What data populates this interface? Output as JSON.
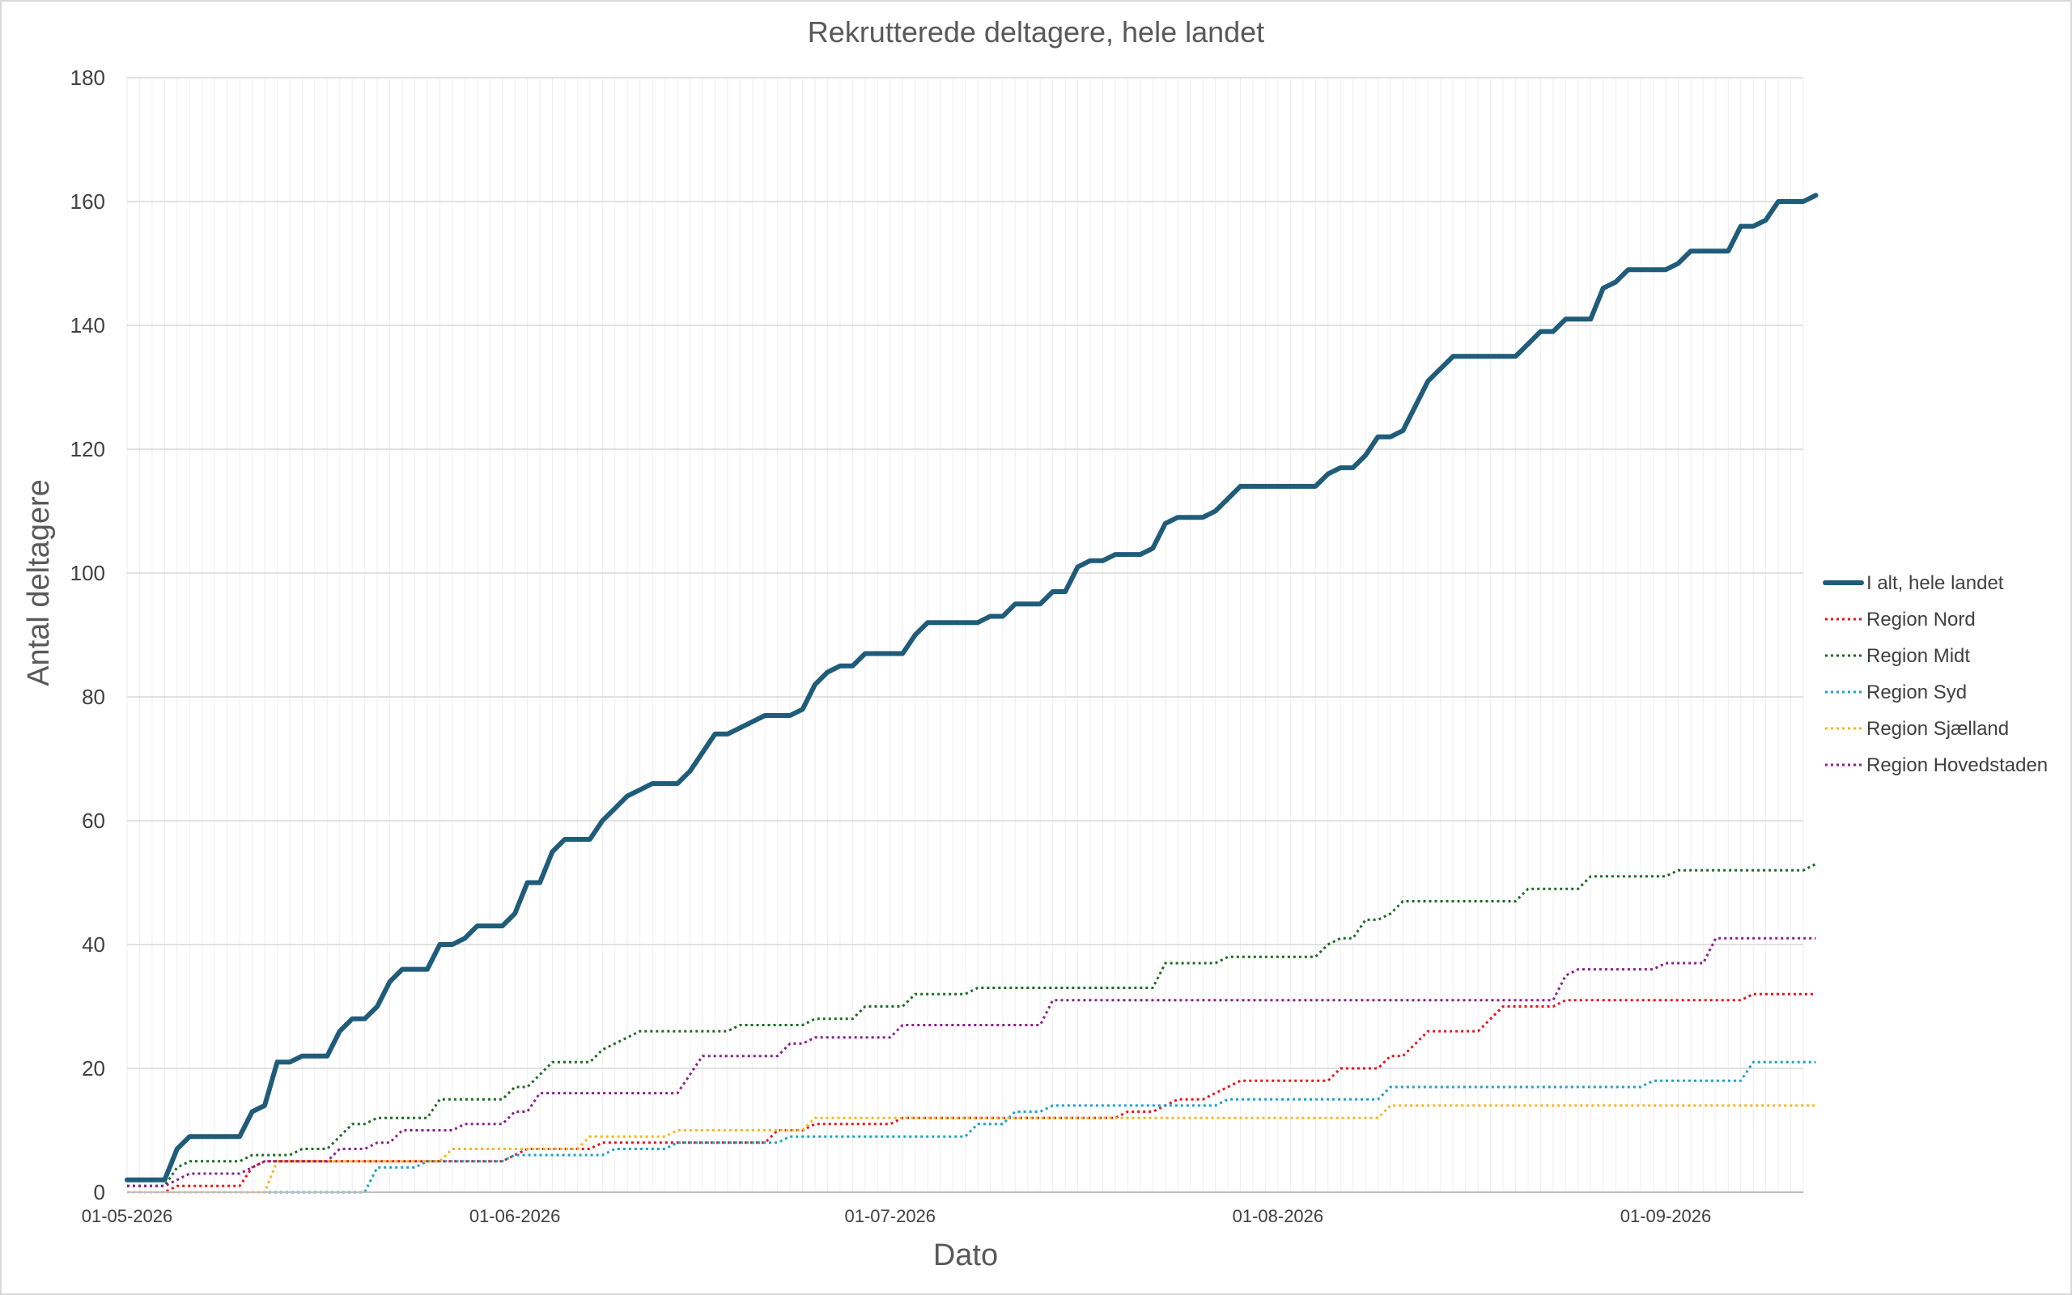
{
  "chart_data": {
    "type": "line",
    "title": "Rekrutterede deltagere, hele landet",
    "xlabel": "Dato",
    "ylabel": "Antal deltagere",
    "x_range": [
      "2026-05-01",
      "2026-09-12"
    ],
    "ylim": [
      0,
      180
    ],
    "y_ticks": [
      0,
      20,
      40,
      60,
      80,
      100,
      120,
      140,
      160,
      180
    ],
    "x_ticks": [
      {
        "date": "2026-05-01",
        "label": "01-05-2026"
      },
      {
        "date": "2026-06-01",
        "label": "01-06-2026"
      },
      {
        "date": "2026-07-01",
        "label": "01-07-2026"
      },
      {
        "date": "2026-08-01",
        "label": "01-08-2026"
      },
      {
        "date": "2026-09-01",
        "label": "01-09-2026"
      }
    ],
    "grid": true,
    "legend_position": "right",
    "series": [
      {
        "name": "I alt, hele landet",
        "color": "#1f5c7a",
        "style": "solid",
        "points": [
          [
            "2026-05-01",
            2
          ],
          [
            "2026-05-04",
            2
          ],
          [
            "2026-05-05",
            7
          ],
          [
            "2026-05-06",
            9
          ],
          [
            "2026-05-10",
            9
          ],
          [
            "2026-05-11",
            13
          ],
          [
            "2026-05-12",
            14
          ],
          [
            "2026-05-13",
            21
          ],
          [
            "2026-05-14",
            21
          ],
          [
            "2026-05-15",
            22
          ],
          [
            "2026-05-17",
            22
          ],
          [
            "2026-05-18",
            26
          ],
          [
            "2026-05-19",
            28
          ],
          [
            "2026-05-20",
            28
          ],
          [
            "2026-05-21",
            30
          ],
          [
            "2026-05-22",
            34
          ],
          [
            "2026-05-23",
            36
          ],
          [
            "2026-05-25",
            36
          ],
          [
            "2026-05-26",
            40
          ],
          [
            "2026-05-27",
            40
          ],
          [
            "2026-05-28",
            41
          ],
          [
            "2026-05-29",
            43
          ],
          [
            "2026-05-31",
            43
          ],
          [
            "2026-06-01",
            45
          ],
          [
            "2026-06-02",
            50
          ],
          [
            "2026-06-03",
            50
          ],
          [
            "2026-06-04",
            55
          ],
          [
            "2026-06-05",
            57
          ],
          [
            "2026-06-07",
            57
          ],
          [
            "2026-06-08",
            60
          ],
          [
            "2026-06-09",
            62
          ],
          [
            "2026-06-10",
            64
          ],
          [
            "2026-06-11",
            65
          ],
          [
            "2026-06-12",
            66
          ],
          [
            "2026-06-14",
            66
          ],
          [
            "2026-06-15",
            68
          ],
          [
            "2026-06-16",
            71
          ],
          [
            "2026-06-17",
            74
          ],
          [
            "2026-06-18",
            74
          ],
          [
            "2026-06-19",
            75
          ],
          [
            "2026-06-21",
            77
          ],
          [
            "2026-06-23",
            77
          ],
          [
            "2026-06-24",
            78
          ],
          [
            "2026-06-25",
            82
          ],
          [
            "2026-06-26",
            84
          ],
          [
            "2026-06-27",
            85
          ],
          [
            "2026-06-28",
            85
          ],
          [
            "2026-06-29",
            87
          ],
          [
            "2026-07-02",
            87
          ],
          [
            "2026-07-03",
            90
          ],
          [
            "2026-07-04",
            92
          ],
          [
            "2026-07-08",
            92
          ],
          [
            "2026-07-09",
            93
          ],
          [
            "2026-07-10",
            93
          ],
          [
            "2026-07-11",
            95
          ],
          [
            "2026-07-13",
            95
          ],
          [
            "2026-07-14",
            97
          ],
          [
            "2026-07-15",
            97
          ],
          [
            "2026-07-16",
            101
          ],
          [
            "2026-07-17",
            102
          ],
          [
            "2026-07-18",
            102
          ],
          [
            "2026-07-19",
            103
          ],
          [
            "2026-07-21",
            103
          ],
          [
            "2026-07-22",
            104
          ],
          [
            "2026-07-23",
            108
          ],
          [
            "2026-07-24",
            109
          ],
          [
            "2026-07-26",
            109
          ],
          [
            "2026-07-27",
            110
          ],
          [
            "2026-07-28",
            112
          ],
          [
            "2026-07-29",
            114
          ],
          [
            "2026-08-04",
            114
          ],
          [
            "2026-08-05",
            116
          ],
          [
            "2026-08-06",
            117
          ],
          [
            "2026-08-07",
            117
          ],
          [
            "2026-08-08",
            119
          ],
          [
            "2026-08-09",
            122
          ],
          [
            "2026-08-10",
            122
          ],
          [
            "2026-08-11",
            123
          ],
          [
            "2026-08-12",
            127
          ],
          [
            "2026-08-13",
            131
          ],
          [
            "2026-08-14",
            133
          ],
          [
            "2026-08-15",
            135
          ],
          [
            "2026-08-20",
            135
          ],
          [
            "2026-08-21",
            137
          ],
          [
            "2026-08-22",
            139
          ],
          [
            "2026-08-23",
            139
          ],
          [
            "2026-08-24",
            141
          ],
          [
            "2026-08-26",
            141
          ],
          [
            "2026-08-27",
            146
          ],
          [
            "2026-08-28",
            147
          ],
          [
            "2026-08-29",
            149
          ],
          [
            "2026-09-01",
            149
          ],
          [
            "2026-09-02",
            150
          ],
          [
            "2026-09-03",
            152
          ],
          [
            "2026-09-06",
            152
          ],
          [
            "2026-09-07",
            156
          ],
          [
            "2026-09-08",
            156
          ],
          [
            "2026-09-09",
            157
          ],
          [
            "2026-09-10",
            160
          ],
          [
            "2026-09-12",
            160
          ],
          [
            "2026-09-13",
            161
          ]
        ]
      },
      {
        "name": "Region Nord",
        "color": "#e8141c",
        "style": "dotted",
        "points": [
          [
            "2026-05-01",
            0
          ],
          [
            "2026-05-04",
            0
          ],
          [
            "2026-05-05",
            1
          ],
          [
            "2026-05-10",
            1
          ],
          [
            "2026-05-11",
            4
          ],
          [
            "2026-05-12",
            5
          ],
          [
            "2026-05-31",
            5
          ],
          [
            "2026-06-01",
            6
          ],
          [
            "2026-06-02",
            7
          ],
          [
            "2026-06-07",
            7
          ],
          [
            "2026-06-08",
            8
          ],
          [
            "2026-06-21",
            8
          ],
          [
            "2026-06-22",
            10
          ],
          [
            "2026-06-24",
            10
          ],
          [
            "2026-06-25",
            11
          ],
          [
            "2026-07-01",
            11
          ],
          [
            "2026-07-02",
            12
          ],
          [
            "2026-07-19",
            12
          ],
          [
            "2026-07-20",
            13
          ],
          [
            "2026-07-22",
            13
          ],
          [
            "2026-07-23",
            14
          ],
          [
            "2026-07-24",
            15
          ],
          [
            "2026-07-26",
            15
          ],
          [
            "2026-07-27",
            16
          ],
          [
            "2026-07-28",
            17
          ],
          [
            "2026-07-29",
            18
          ],
          [
            "2026-08-05",
            18
          ],
          [
            "2026-08-06",
            20
          ],
          [
            "2026-08-09",
            20
          ],
          [
            "2026-08-10",
            22
          ],
          [
            "2026-08-11",
            22
          ],
          [
            "2026-08-12",
            24
          ],
          [
            "2026-08-13",
            26
          ],
          [
            "2026-08-17",
            26
          ],
          [
            "2026-08-18",
            28
          ],
          [
            "2026-08-19",
            30
          ],
          [
            "2026-08-23",
            30
          ],
          [
            "2026-08-24",
            31
          ],
          [
            "2026-09-07",
            31
          ],
          [
            "2026-09-08",
            32
          ],
          [
            "2026-09-13",
            32
          ]
        ]
      },
      {
        "name": "Region Midt",
        "color": "#1a6b24",
        "style": "dotted",
        "points": [
          [
            "2026-05-01",
            1
          ],
          [
            "2026-05-04",
            1
          ],
          [
            "2026-05-05",
            4
          ],
          [
            "2026-05-06",
            5
          ],
          [
            "2026-05-10",
            5
          ],
          [
            "2026-05-11",
            6
          ],
          [
            "2026-05-14",
            6
          ],
          [
            "2026-05-15",
            7
          ],
          [
            "2026-05-17",
            7
          ],
          [
            "2026-05-18",
            9
          ],
          [
            "2026-05-19",
            11
          ],
          [
            "2026-05-20",
            11
          ],
          [
            "2026-05-21",
            12
          ],
          [
            "2026-05-25",
            12
          ],
          [
            "2026-05-26",
            15
          ],
          [
            "2026-05-31",
            15
          ],
          [
            "2026-06-01",
            17
          ],
          [
            "2026-06-02",
            17
          ],
          [
            "2026-06-03",
            19
          ],
          [
            "2026-06-04",
            21
          ],
          [
            "2026-06-07",
            21
          ],
          [
            "2026-06-08",
            23
          ],
          [
            "2026-06-09",
            24
          ],
          [
            "2026-06-10",
            25
          ],
          [
            "2026-06-11",
            26
          ],
          [
            "2026-06-18",
            26
          ],
          [
            "2026-06-19",
            27
          ],
          [
            "2026-06-24",
            27
          ],
          [
            "2026-06-25",
            28
          ],
          [
            "2026-06-28",
            28
          ],
          [
            "2026-06-29",
            30
          ],
          [
            "2026-07-02",
            30
          ],
          [
            "2026-07-03",
            32
          ],
          [
            "2026-07-07",
            32
          ],
          [
            "2026-07-08",
            33
          ],
          [
            "2026-07-22",
            33
          ],
          [
            "2026-07-23",
            37
          ],
          [
            "2026-07-27",
            37
          ],
          [
            "2026-07-28",
            38
          ],
          [
            "2026-08-04",
            38
          ],
          [
            "2026-08-05",
            40
          ],
          [
            "2026-08-06",
            41
          ],
          [
            "2026-08-07",
            41
          ],
          [
            "2026-08-08",
            44
          ],
          [
            "2026-08-09",
            44
          ],
          [
            "2026-08-10",
            45
          ],
          [
            "2026-08-11",
            47
          ],
          [
            "2026-08-20",
            47
          ],
          [
            "2026-08-21",
            49
          ],
          [
            "2026-08-25",
            49
          ],
          [
            "2026-08-26",
            51
          ],
          [
            "2026-09-01",
            51
          ],
          [
            "2026-09-02",
            52
          ],
          [
            "2026-09-12",
            52
          ],
          [
            "2026-09-13",
            53
          ]
        ]
      },
      {
        "name": "Region Syd",
        "color": "#1aa3c8",
        "style": "dotted",
        "points": [
          [
            "2026-05-01",
            0
          ],
          [
            "2026-05-20",
            0
          ],
          [
            "2026-05-21",
            4
          ],
          [
            "2026-05-24",
            4
          ],
          [
            "2026-05-25",
            5
          ],
          [
            "2026-05-31",
            5
          ],
          [
            "2026-06-01",
            6
          ],
          [
            "2026-06-08",
            6
          ],
          [
            "2026-06-09",
            7
          ],
          [
            "2026-06-13",
            7
          ],
          [
            "2026-06-14",
            8
          ],
          [
            "2026-06-22",
            8
          ],
          [
            "2026-06-23",
            9
          ],
          [
            "2026-07-07",
            9
          ],
          [
            "2026-07-08",
            11
          ],
          [
            "2026-07-10",
            11
          ],
          [
            "2026-07-11",
            13
          ],
          [
            "2026-07-13",
            13
          ],
          [
            "2026-07-14",
            14
          ],
          [
            "2026-07-27",
            14
          ],
          [
            "2026-07-28",
            15
          ],
          [
            "2026-08-09",
            15
          ],
          [
            "2026-08-10",
            17
          ],
          [
            "2026-08-30",
            17
          ],
          [
            "2026-08-31",
            18
          ],
          [
            "2026-09-07",
            18
          ],
          [
            "2026-09-08",
            21
          ],
          [
            "2026-09-13",
            21
          ]
        ]
      },
      {
        "name": "Region Sjælland",
        "color": "#f5b81b",
        "style": "dotted",
        "points": [
          [
            "2026-05-01",
            0
          ],
          [
            "2026-05-12",
            0
          ],
          [
            "2026-05-13",
            5
          ],
          [
            "2026-05-26",
            5
          ],
          [
            "2026-05-27",
            7
          ],
          [
            "2026-06-06",
            7
          ],
          [
            "2026-06-07",
            9
          ],
          [
            "2026-06-13",
            9
          ],
          [
            "2026-06-14",
            10
          ],
          [
            "2026-06-24",
            10
          ],
          [
            "2026-06-25",
            12
          ],
          [
            "2026-07-22",
            12
          ],
          [
            "2026-08-09",
            12
          ],
          [
            "2026-08-10",
            14
          ],
          [
            "2026-09-13",
            14
          ]
        ]
      },
      {
        "name": "Region Hovedstaden",
        "color": "#8b1e8f",
        "style": "dotted",
        "points": [
          [
            "2026-05-01",
            1
          ],
          [
            "2026-05-04",
            1
          ],
          [
            "2026-05-05",
            2
          ],
          [
            "2026-05-06",
            3
          ],
          [
            "2026-05-10",
            3
          ],
          [
            "2026-05-11",
            4
          ],
          [
            "2026-05-12",
            5
          ],
          [
            "2026-05-17",
            5
          ],
          [
            "2026-05-18",
            7
          ],
          [
            "2026-05-20",
            7
          ],
          [
            "2026-05-21",
            8
          ],
          [
            "2026-05-22",
            8
          ],
          [
            "2026-05-23",
            10
          ],
          [
            "2026-05-27",
            10
          ],
          [
            "2026-05-28",
            11
          ],
          [
            "2026-05-31",
            11
          ],
          [
            "2026-06-01",
            13
          ],
          [
            "2026-06-02",
            13
          ],
          [
            "2026-06-03",
            16
          ],
          [
            "2026-06-14",
            16
          ],
          [
            "2026-06-15",
            19
          ],
          [
            "2026-06-16",
            22
          ],
          [
            "2026-06-22",
            22
          ],
          [
            "2026-06-23",
            24
          ],
          [
            "2026-06-24",
            24
          ],
          [
            "2026-06-25",
            25
          ],
          [
            "2026-07-01",
            25
          ],
          [
            "2026-07-02",
            27
          ],
          [
            "2026-07-13",
            27
          ],
          [
            "2026-07-14",
            31
          ],
          [
            "2026-08-23",
            31
          ],
          [
            "2026-08-24",
            35
          ],
          [
            "2026-08-25",
            36
          ],
          [
            "2026-08-31",
            36
          ],
          [
            "2026-09-01",
            37
          ],
          [
            "2026-09-04",
            37
          ],
          [
            "2026-09-05",
            41
          ],
          [
            "2026-09-13",
            41
          ]
        ]
      }
    ]
  }
}
